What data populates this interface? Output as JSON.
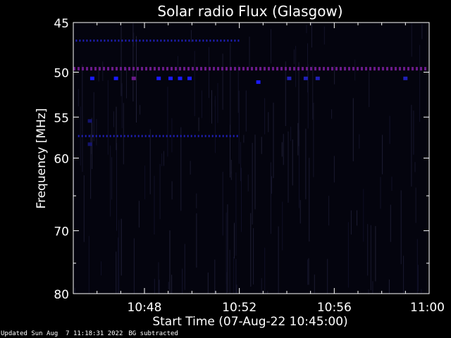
{
  "chart_data": {
    "type": "heatmap",
    "title": "Solar radio Flux (Glasgow)",
    "ylabel": "Frequency [MHz]",
    "xlabel": "Start Time (07-Aug-22 10:45:00)",
    "x_ticks": [
      "10:48",
      "10:52",
      "10:56",
      "11:00"
    ],
    "x_tick_minutes": [
      3,
      7,
      11,
      15
    ],
    "xlim_minutes": [
      0,
      15
    ],
    "y_ticks": [
      45,
      50,
      55,
      60,
      70,
      80
    ],
    "ylim": [
      45,
      80
    ],
    "y_scale": "log",
    "colors": {
      "background": "#000000",
      "plot_bg": "#04040e",
      "axis": "#ffffff",
      "signal_low": "#0a0a3a",
      "signal_mid": "#1a1aff",
      "signal_high": "#6a1a8a"
    },
    "bands": [
      {
        "freq": 46.8,
        "intensity": 0.35,
        "kind": "dashed",
        "x_range": [
          0.1,
          7.0
        ]
      },
      {
        "freq": 49.6,
        "intensity": 1.0,
        "kind": "dashed",
        "x_range": [
          0.0,
          15.0
        ]
      },
      {
        "freq": 57.3,
        "intensity": 0.4,
        "kind": "dashed",
        "x_range": [
          0.2,
          7.0
        ]
      }
    ],
    "spots": [
      {
        "minute": 0.8,
        "freq": 50.7,
        "intensity": 0.6
      },
      {
        "minute": 1.8,
        "freq": 50.7,
        "intensity": 0.8
      },
      {
        "minute": 2.55,
        "freq": 50.7,
        "intensity": 1.0
      },
      {
        "minute": 3.6,
        "freq": 50.7,
        "intensity": 0.8
      },
      {
        "minute": 4.1,
        "freq": 50.7,
        "intensity": 0.9
      },
      {
        "minute": 4.5,
        "freq": 50.7,
        "intensity": 0.7
      },
      {
        "minute": 4.9,
        "freq": 50.7,
        "intensity": 0.8
      },
      {
        "minute": 7.8,
        "freq": 51.1,
        "intensity": 0.7
      },
      {
        "minute": 9.1,
        "freq": 50.7,
        "intensity": 0.5
      },
      {
        "minute": 9.8,
        "freq": 50.7,
        "intensity": 0.5
      },
      {
        "minute": 10.3,
        "freq": 50.7,
        "intensity": 0.5
      },
      {
        "minute": 14.0,
        "freq": 50.7,
        "intensity": 0.5
      },
      {
        "minute": 0.7,
        "freq": 55.5,
        "intensity": 0.3
      },
      {
        "minute": 0.7,
        "freq": 58.3,
        "intensity": 0.3
      }
    ]
  },
  "footer": {
    "updated": "Updated Sun Aug  7 11:18:31 2022",
    "note": "BG subtracted"
  }
}
